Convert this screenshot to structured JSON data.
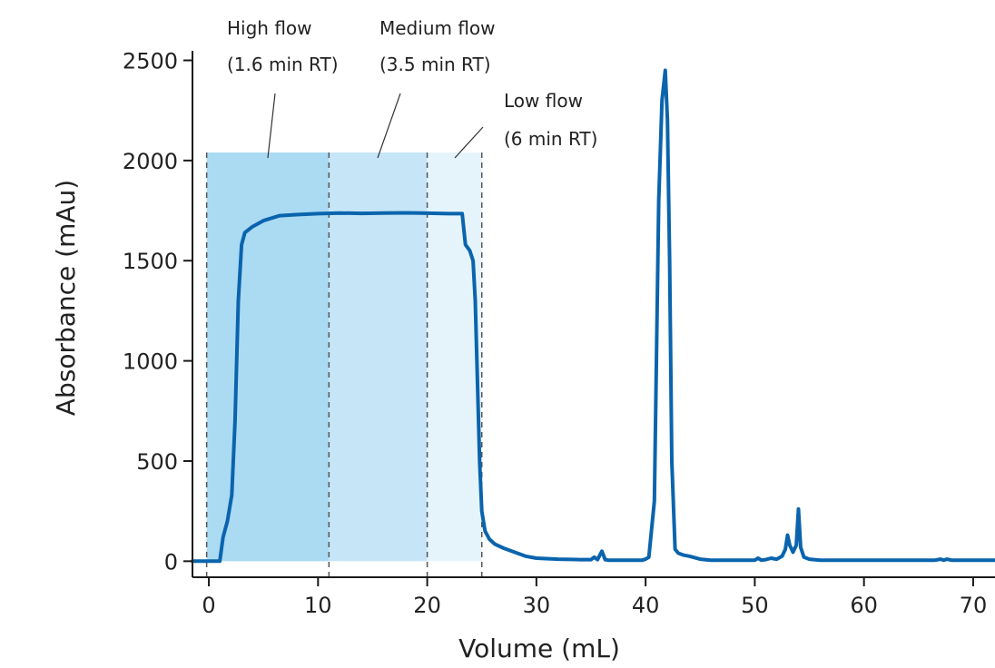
{
  "chart_data": {
    "type": "line",
    "xlabel": "Volume (mL)",
    "ylabel": "Absorbance (mAu)",
    "xlim": [
      -1.5,
      72
    ],
    "ylim": [
      -80,
      2620
    ],
    "xticks": [
      0,
      10,
      20,
      30,
      40,
      50,
      60,
      70
    ],
    "yticks": [
      0,
      500,
      1000,
      1500,
      2000,
      2500
    ],
    "grid": false,
    "colors": {
      "line": "#0a64ad",
      "high_flow": "#abdaf3",
      "medium_flow": "#c6e6f7",
      "low_flow": "#e5f4fb"
    },
    "regions": [
      {
        "label": "High flow",
        "sublabel": "(1.6 min RT)",
        "x_start": -0.2,
        "x_end": 11,
        "y_top": 2040,
        "color": "#abdaf3"
      },
      {
        "label": "Medium flow",
        "sublabel": "(3.5 min RT)",
        "x_start": 11,
        "x_end": 20,
        "y_top": 2040,
        "color": "#c6e6f7"
      },
      {
        "label": "Low flow",
        "sublabel": "(6 min RT)",
        "x_start": 20,
        "x_end": 25,
        "y_top": 2040,
        "color": "#e5f4fb"
      }
    ],
    "series": [
      {
        "x": [
          -1.5,
          1.0,
          1.3,
          1.7,
          2.1,
          2.4,
          2.7,
          3.0,
          3.3,
          4.0,
          5.0,
          6.5,
          8.0,
          10.0,
          12.0,
          14.0,
          16.0,
          18.0,
          20.0,
          22.0,
          23.2,
          23.5,
          23.9,
          24.2,
          24.4,
          24.6,
          24.8,
          25.0,
          25.3,
          25.7,
          26.2,
          27.0,
          28.0,
          29.0,
          30.0,
          32.0,
          34.0,
          35.0,
          35.3,
          35.6,
          36.0,
          36.3,
          36.6,
          37.0,
          38.0,
          39.0,
          39.7,
          40.0,
          40.3,
          40.8,
          41.2,
          41.5,
          41.8,
          42.0,
          42.2,
          42.4,
          42.7,
          43.0,
          43.5,
          44.0,
          45.0,
          46.0,
          48.0,
          50.0,
          50.3,
          50.6,
          51.0,
          51.5,
          52.0,
          52.5,
          52.8,
          53.0,
          53.2,
          53.5,
          53.8,
          54.0,
          54.2,
          54.5,
          55.0,
          56.0,
          58.0,
          60.0,
          62.0,
          64.0,
          66.0,
          66.5,
          67.0,
          67.3,
          67.6,
          68.0,
          70.0,
          72.0
        ],
        "y": [
          0,
          0,
          120,
          200,
          330,
          700,
          1300,
          1580,
          1640,
          1670,
          1700,
          1725,
          1730,
          1735,
          1738,
          1736,
          1738,
          1739,
          1737,
          1735,
          1735,
          1580,
          1550,
          1500,
          1300,
          900,
          500,
          250,
          150,
          110,
          85,
          65,
          45,
          25,
          15,
          10,
          8,
          8,
          20,
          8,
          50,
          8,
          5,
          5,
          5,
          5,
          5,
          10,
          20,
          300,
          1800,
          2300,
          2450,
          2200,
          1500,
          500,
          60,
          40,
          30,
          25,
          10,
          5,
          5,
          5,
          15,
          5,
          8,
          15,
          10,
          25,
          60,
          130,
          80,
          45,
          80,
          260,
          70,
          20,
          10,
          5,
          5,
          5,
          5,
          5,
          5,
          5,
          10,
          5,
          10,
          5,
          5,
          5
        ]
      }
    ]
  }
}
